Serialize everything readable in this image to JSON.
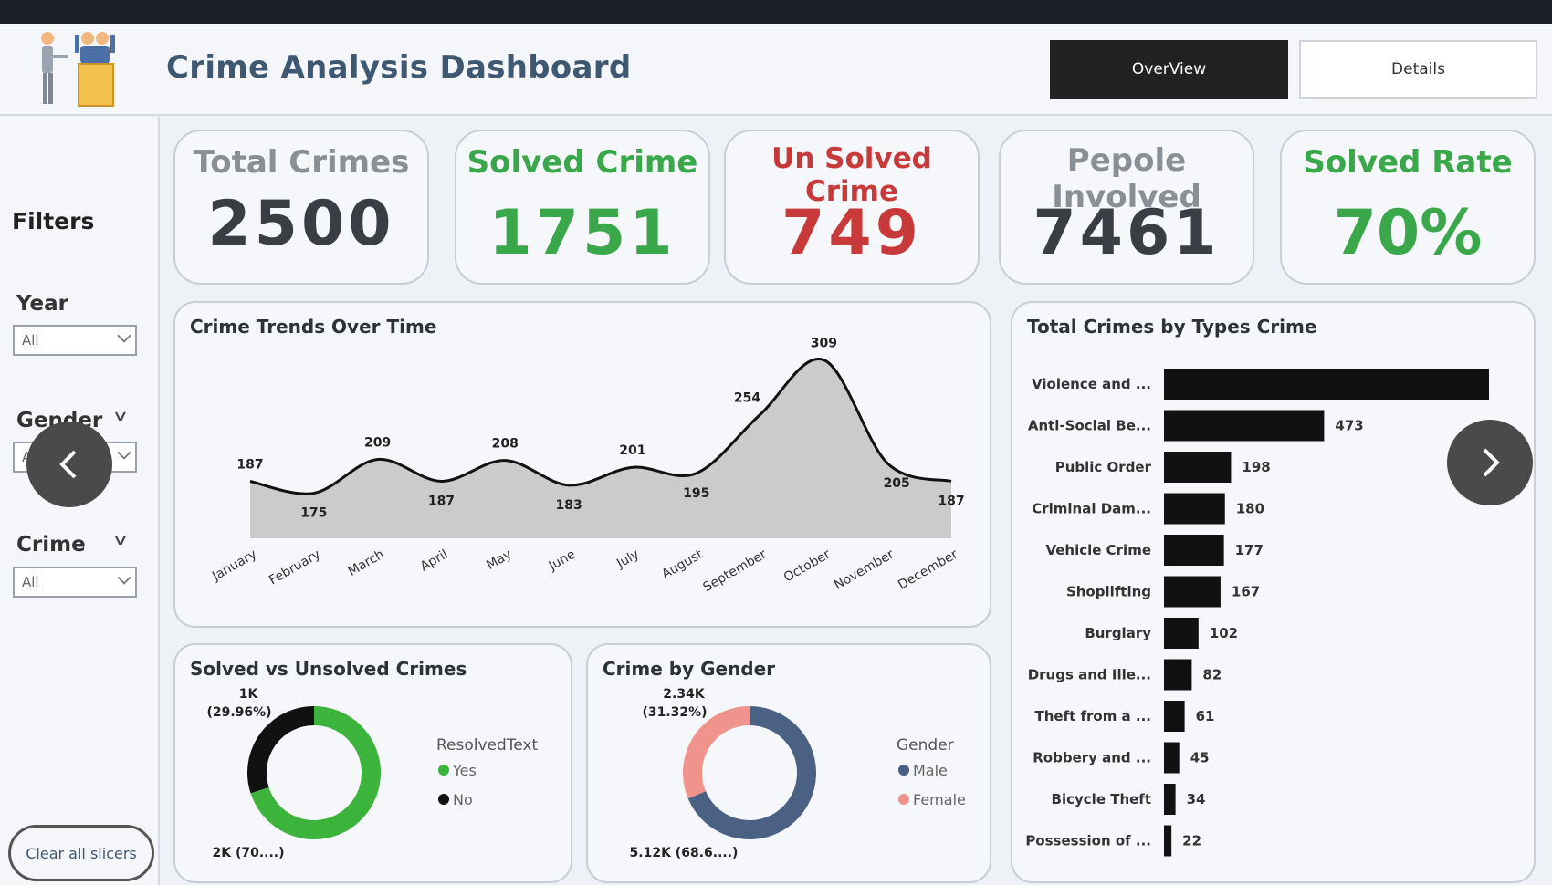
{
  "header": {
    "title": "Crime Analysis Dashboard",
    "nav": {
      "overview": "OverView",
      "details": "Details"
    }
  },
  "sidebar": {
    "title": "Filters",
    "filters": [
      {
        "label": "Year",
        "value": "All"
      },
      {
        "label": "Gender",
        "value": "All"
      },
      {
        "label": "Crime",
        "value": "All"
      }
    ],
    "clear_label": "Clear all slicers"
  },
  "kpis": [
    {
      "title": "Total Crimes",
      "value": "2500",
      "color": "#3a3d44"
    },
    {
      "title": "Solved Crime",
      "value": "1751",
      "color": "#3aa84a"
    },
    {
      "title": "Un Solved Crime",
      "value": "749",
      "color": "#c83a3a"
    },
    {
      "title": "Pepole Involved",
      "value": "7461",
      "color": "#3a3d44"
    },
    {
      "title": "Solved Rate",
      "value": "70%",
      "color": "#3aa84a"
    }
  ],
  "colors": {
    "area_fill": "#cbcbcb",
    "bar": "#111111",
    "solved_yes": "#3cb43c",
    "solved_no": "#111111",
    "male": "#4a6183",
    "female": "#f0938c"
  },
  "chart_data": [
    {
      "type": "area",
      "title": "Crime Trends Over Time",
      "categories": [
        "January",
        "February",
        "March",
        "April",
        "May",
        "June",
        "July",
        "August",
        "September",
        "October",
        "November",
        "December"
      ],
      "values": [
        187,
        175,
        209,
        187,
        208,
        183,
        201,
        195,
        254,
        309,
        205,
        187
      ],
      "ylim": [
        170,
        315
      ]
    },
    {
      "type": "bar",
      "title": "Total Crimes by Types Crime",
      "categories": [
        "Violence and ...",
        "Anti-Social Be...",
        "Public Order",
        "Criminal Dam...",
        "Vehicle Crime",
        "Shoplifting",
        "Burglary",
        "Drugs and Ille...",
        "Theft from a ...",
        "Robbery and ...",
        "Bicycle Theft",
        "Possession of ..."
      ],
      "values": [
        960,
        473,
        198,
        180,
        177,
        167,
        102,
        82,
        61,
        45,
        34,
        22
      ],
      "value_labels": [
        "",
        "473",
        "198",
        "180",
        "177",
        "167",
        "102",
        "82",
        "61",
        "45",
        "34",
        "22"
      ]
    },
    {
      "type": "pie",
      "title": "Solved vs Unsolved Crimes",
      "legend_title": "ResolvedText",
      "slices": [
        {
          "name": "Yes",
          "value": 70.04,
          "label": "2K (70....)"
        },
        {
          "name": "No",
          "value": 29.96,
          "label": "1K\n(29.96%)"
        }
      ]
    },
    {
      "type": "pie",
      "title": "Crime by Gender",
      "legend_title": "Gender",
      "slices": [
        {
          "name": "Male",
          "value": 68.68,
          "label": "5.12K (68.6....)"
        },
        {
          "name": "Female",
          "value": 31.32,
          "label": "2.34K\n(31.32%)"
        }
      ]
    }
  ]
}
